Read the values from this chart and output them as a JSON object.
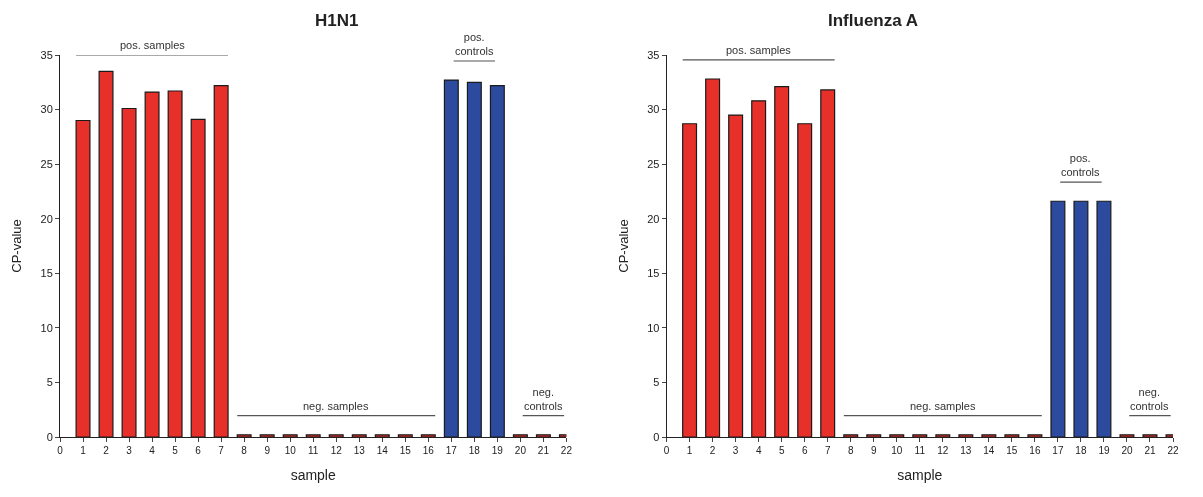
{
  "chart_data": [
    {
      "type": "bar",
      "title": "H1N1",
      "xlabel": "sample",
      "ylabel": "CP-value",
      "x": [
        1,
        2,
        3,
        4,
        5,
        6,
        7,
        8,
        9,
        10,
        11,
        12,
        13,
        14,
        15,
        16,
        17,
        18,
        19,
        20,
        21,
        22
      ],
      "values": [
        29.0,
        33.5,
        30.1,
        31.6,
        31.7,
        29.1,
        32.2,
        0.2,
        0.2,
        0.2,
        0.2,
        0.2,
        0.2,
        0.2,
        0.2,
        0.2,
        32.7,
        32.5,
        32.2,
        0.2,
        0.2,
        0.2
      ],
      "colors": [
        "#e8302a",
        "#e8302a",
        "#e8302a",
        "#e8302a",
        "#e8302a",
        "#e8302a",
        "#e8302a",
        "#e8302a",
        "#e8302a",
        "#e8302a",
        "#e8302a",
        "#e8302a",
        "#e8302a",
        "#e8302a",
        "#e8302a",
        "#e8302a",
        "#2c4a9e",
        "#2c4a9e",
        "#2c4a9e",
        "#e8302a",
        "#e8302a",
        "#e8302a"
      ],
      "xlim": [
        0,
        22
      ],
      "xticks": [
        0,
        1,
        2,
        3,
        4,
        5,
        6,
        7,
        8,
        9,
        10,
        11,
        12,
        13,
        14,
        15,
        16,
        17,
        18,
        19,
        20,
        21,
        22
      ],
      "ylim": [
        0,
        35
      ],
      "yticks": [
        0,
        5,
        10,
        15,
        20,
        25,
        30,
        35
      ],
      "grid": false,
      "legend": false,
      "annotations": [
        "pos. samples",
        "neg. samples",
        "pos.\ncontrols",
        "neg.\ncontrols"
      ]
    },
    {
      "type": "bar",
      "title": "Influenza A",
      "xlabel": "sample",
      "ylabel": "CP-value",
      "x": [
        1,
        2,
        3,
        4,
        5,
        6,
        7,
        8,
        9,
        10,
        11,
        12,
        13,
        14,
        15,
        16,
        17,
        18,
        19,
        20,
        21,
        22
      ],
      "values": [
        28.7,
        32.8,
        29.5,
        30.8,
        32.1,
        28.7,
        31.8,
        0.2,
        0.2,
        0.2,
        0.2,
        0.2,
        0.2,
        0.2,
        0.2,
        0.2,
        21.6,
        21.6,
        21.6,
        0.2,
        0.2,
        0.2
      ],
      "colors": [
        "#e8302a",
        "#e8302a",
        "#e8302a",
        "#e8302a",
        "#e8302a",
        "#e8302a",
        "#e8302a",
        "#e8302a",
        "#e8302a",
        "#e8302a",
        "#e8302a",
        "#e8302a",
        "#e8302a",
        "#e8302a",
        "#e8302a",
        "#e8302a",
        "#2c4a9e",
        "#2c4a9e",
        "#2c4a9e",
        "#e8302a",
        "#e8302a",
        "#e8302a"
      ],
      "xlim": [
        0,
        22
      ],
      "xticks": [
        0,
        1,
        2,
        3,
        4,
        5,
        6,
        7,
        8,
        9,
        10,
        11,
        12,
        13,
        14,
        15,
        16,
        17,
        18,
        19,
        20,
        21,
        22
      ],
      "ylim": [
        0,
        35
      ],
      "yticks": [
        0,
        5,
        10,
        15,
        20,
        25,
        30,
        35
      ],
      "grid": false,
      "legend": false,
      "annotations": [
        "pos. samples",
        "neg. samples",
        "pos.\ncontrols",
        "neg.\ncontrols"
      ]
    }
  ]
}
